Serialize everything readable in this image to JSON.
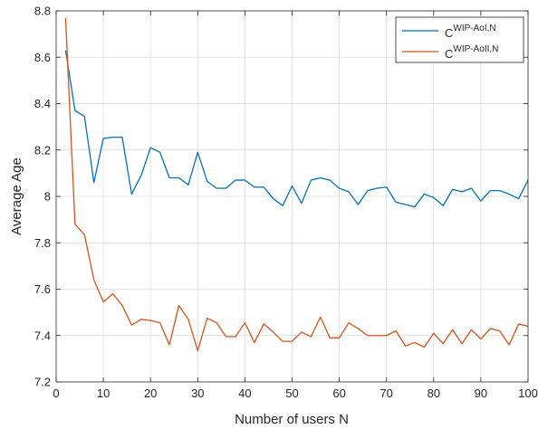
{
  "chart_data": {
    "type": "line",
    "xlabel": "Number of users N",
    "ylabel": "Average Age",
    "xlim": [
      0,
      100
    ],
    "ylim": [
      7.2,
      8.8
    ],
    "xticks": [
      0,
      10,
      20,
      30,
      40,
      50,
      60,
      70,
      80,
      90,
      100
    ],
    "xtick_labels": [
      "0",
      "10",
      "20",
      "30",
      "40",
      "50",
      "60",
      "70",
      "80",
      "90",
      "100"
    ],
    "yticks": [
      7.2,
      7.4,
      7.6,
      7.8,
      8.0,
      8.2,
      8.4,
      8.6,
      8.8
    ],
    "ytick_labels": [
      "7.2",
      "7.4",
      "7.6",
      "7.8",
      "8",
      "8.2",
      "8.4",
      "8.6",
      "8.8"
    ],
    "grid": true,
    "legend_position": "top-right",
    "x": [
      2,
      4,
      6,
      8,
      10,
      12,
      14,
      16,
      18,
      20,
      22,
      24,
      26,
      28,
      30,
      32,
      34,
      36,
      38,
      40,
      42,
      44,
      46,
      48,
      50,
      52,
      54,
      56,
      58,
      60,
      62,
      64,
      66,
      68,
      70,
      72,
      74,
      76,
      78,
      80,
      82,
      84,
      86,
      88,
      90,
      92,
      94,
      96,
      98,
      100
    ],
    "series": [
      {
        "name_base": "C",
        "name_sup": "WIP-AoI,N",
        "color": "#0072BD",
        "values": [
          8.63,
          8.37,
          8.345,
          8.06,
          8.25,
          8.255,
          8.255,
          8.01,
          8.09,
          8.21,
          8.19,
          8.08,
          8.08,
          8.05,
          8.19,
          8.065,
          8.035,
          8.035,
          8.07,
          8.07,
          8.04,
          8.04,
          7.99,
          7.96,
          8.045,
          7.97,
          8.07,
          8.08,
          8.07,
          8.035,
          8.02,
          7.965,
          8.025,
          8.035,
          8.04,
          7.975,
          7.965,
          7.955,
          8.01,
          7.995,
          7.96,
          8.03,
          8.02,
          8.035,
          7.98,
          8.025,
          8.025,
          8.01,
          7.99,
          8.07
        ]
      },
      {
        "name_base": "C",
        "name_sup": "WIP-AoII,N",
        "color": "#D95319",
        "values": [
          8.77,
          7.88,
          7.835,
          7.64,
          7.545,
          7.58,
          7.53,
          7.445,
          7.47,
          7.465,
          7.455,
          7.36,
          7.53,
          7.47,
          7.335,
          7.475,
          7.455,
          7.395,
          7.395,
          7.455,
          7.37,
          7.45,
          7.415,
          7.375,
          7.375,
          7.415,
          7.395,
          7.48,
          7.39,
          7.39,
          7.455,
          7.43,
          7.4,
          7.4,
          7.4,
          7.42,
          7.355,
          7.37,
          7.35,
          7.41,
          7.365,
          7.425,
          7.365,
          7.425,
          7.385,
          7.43,
          7.42,
          7.36,
          7.45,
          7.44
        ]
      }
    ]
  }
}
